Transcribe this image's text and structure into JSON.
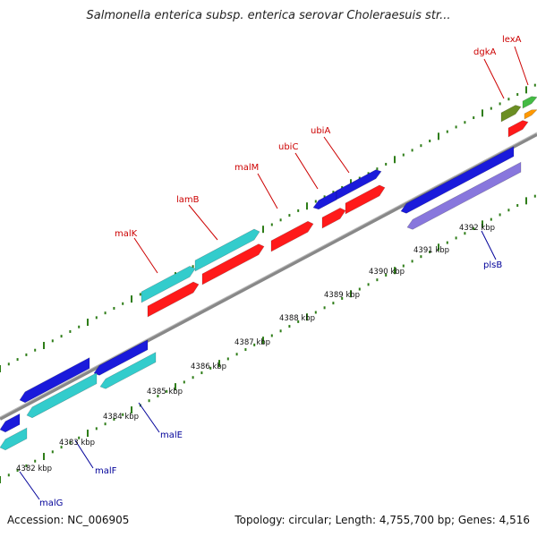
{
  "title": "Salmonella enterica subsp. enterica serovar Choleraesuis str...",
  "footer": {
    "accession": "Accession: NC_006905",
    "summary": "Topology: circular; Length: 4,755,700 bp; Genes: 4,516"
  },
  "ticks": [
    "4382 kbp",
    "4383 kbp",
    "4384 kbp",
    "4385 kbp",
    "4386 kbp",
    "4387 kbp",
    "4388 kbp",
    "4389 kbp",
    "4390 kbp",
    "4391 kbp",
    "4392 kbp"
  ],
  "genes_top": [
    "malK",
    "lamB",
    "malM",
    "ubiC",
    "ubiA",
    "dgkA",
    "lexA"
  ],
  "genes_bottom": [
    "malG",
    "malF",
    "malE",
    "plsB"
  ],
  "colors": {
    "label_red": "#cc0000",
    "label_blue": "#000099",
    "tick_green": "#2e7d18",
    "backbone": "#888888",
    "red": "#ff1a1a",
    "cyan": "#33cccc",
    "blue": "#1a1adb",
    "lavender": "#8877dd",
    "olive": "#6b8e23",
    "green": "#44bb44",
    "orange": "#ff9900"
  }
}
